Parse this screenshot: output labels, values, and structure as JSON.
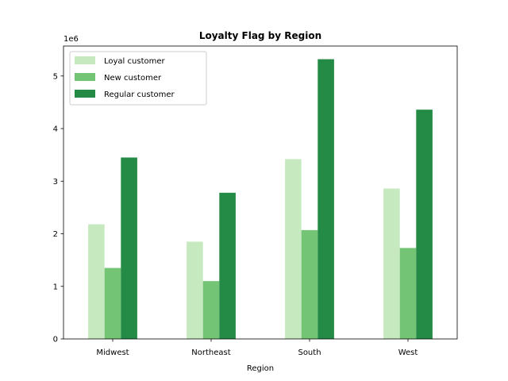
{
  "chart_data": {
    "type": "bar",
    "title": "Loyalty Flag by Region",
    "xlabel": "Region",
    "ylabel": "",
    "y_scale_label": "1e6",
    "categories": [
      "Midwest",
      "Northeast",
      "South",
      "West"
    ],
    "series": [
      {
        "name": "Loyal customer",
        "color": "#c7e9c0",
        "values": [
          2.18,
          1.85,
          3.42,
          2.86
        ]
      },
      {
        "name": "New customer",
        "color": "#74c476",
        "values": [
          1.35,
          1.1,
          2.07,
          1.73
        ]
      },
      {
        "name": "Regular customer",
        "color": "#238b45",
        "values": [
          3.45,
          2.78,
          5.32,
          4.36
        ]
      }
    ],
    "ylim": [
      0,
      5.57
    ],
    "yticks": [
      "0",
      "1",
      "2",
      "3",
      "4",
      "5"
    ],
    "legend_position": "upper-left",
    "grid": false
  }
}
